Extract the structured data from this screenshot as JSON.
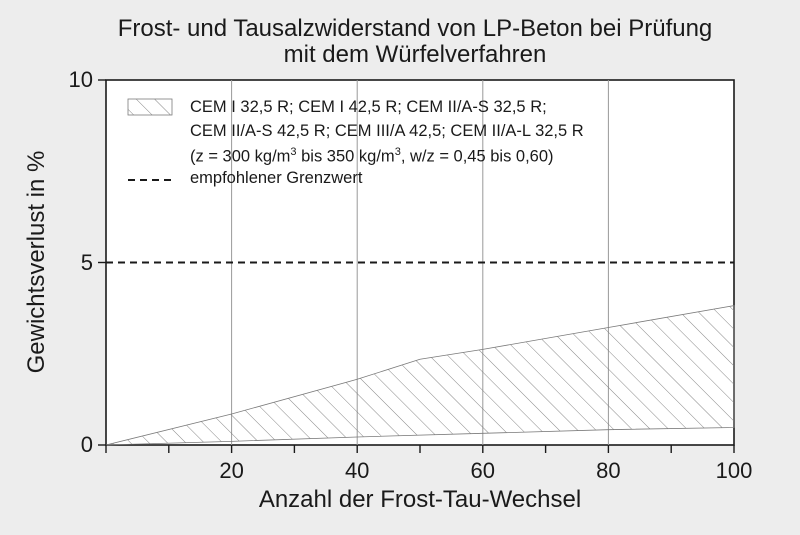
{
  "colors": {
    "background": "#ededed",
    "plot_area": "#ffffff",
    "axis": "#1a1a1a",
    "grid": "#999999",
    "hatch": "#7a7a7a",
    "limit_line": "#1a1a1a"
  },
  "chart_data": {
    "type": "area",
    "title_line1": "Frost- und Tausalzwiderstand von LP-Beton bei Prüfung",
    "title_line2": "mit dem Würfelverfahren",
    "xlabel": "Anzahl der Frost-Tau-Wechsel",
    "ylabel": "Gewichtsverlust in %",
    "xlim": [
      0,
      100
    ],
    "ylim": [
      0,
      10
    ],
    "x_ticks": [
      20,
      40,
      60,
      80,
      100
    ],
    "x_tick_labels": [
      "20",
      "40",
      "60",
      "80",
      "100"
    ],
    "y_ticks": [
      0,
      5,
      10
    ],
    "y_tick_labels": [
      "0",
      "5",
      "10"
    ],
    "grid": "vertical at x = 20, 40, 60, 80",
    "legend_placement": "top-left inside plot",
    "series": [
      {
        "name": "CEM I 32,5 R; CEM I 42,5 R; CEM II/A-S 32,5 R; CEM II/A-S 42,5 R; CEM III/A 42,5; CEM II/A-L 32,5 R (z = 300 kg/m3 bis 350 kg/m3, w/z = 0,45 bis 0,60)",
        "style": "hatched band",
        "upper": {
          "x": [
            0,
            20,
            40,
            50,
            60,
            80,
            100
          ],
          "y": [
            0,
            0.85,
            1.8,
            2.35,
            2.62,
            3.22,
            3.82
          ]
        },
        "lower": {
          "x": [
            0,
            20,
            40,
            60,
            80,
            100
          ],
          "y": [
            0,
            0.1,
            0.22,
            0.32,
            0.42,
            0.48
          ]
        }
      },
      {
        "name": "empfohlener Grenzwert",
        "style": "dashed line",
        "x": [
          0,
          100
        ],
        "y": [
          5,
          5
        ]
      }
    ],
    "legend": {
      "band_line1": "CEM I 32,5 R; CEM I 42,5 R; CEM II/A-S 32,5 R;",
      "band_line2": "CEM II/A-S 42,5 R; CEM III/A 42,5; CEM II/A-L 32,5 R",
      "band_line3_a": "(z = 300 kg/m",
      "band_line3_sup1": "3",
      "band_line3_b": " bis 350 kg/m",
      "band_line3_sup2": "3",
      "band_line3_c": ", w/z = 0,45 bis 0,60)",
      "limit_label": "empfohlener Grenzwert"
    }
  }
}
